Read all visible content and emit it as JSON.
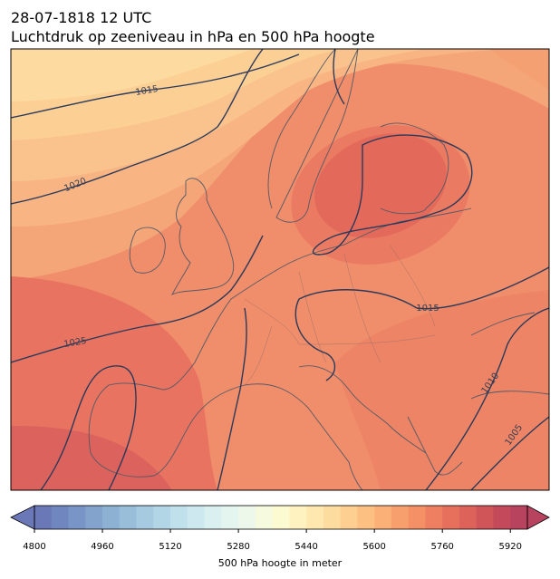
{
  "header": {
    "date": "28-07-1818 12 UTC",
    "title": "Luchtdruk op zeeniveau in hPa en 500 hPa hoogte"
  },
  "map": {
    "contour_labels": [
      "1015",
      "1020",
      "1025",
      "1015",
      "1010",
      "1005"
    ]
  },
  "colorbar": {
    "label": "500 hPa hoogte in meter",
    "clim": [
      4800,
      5960
    ],
    "ticks": [
      4800,
      4960,
      5120,
      5280,
      5440,
      5600,
      5760,
      5920
    ],
    "colors": [
      "#6b78b8",
      "#7086bf",
      "#7994c6",
      "#83a3cc",
      "#8db1d3",
      "#99bed9",
      "#a6cbe0",
      "#b3d6e6",
      "#c0e0ec",
      "#cde9ef",
      "#d9eff0",
      "#e4f4ef",
      "#eef8ea",
      "#f6fbdf",
      "#fcfad0",
      "#fef3c0",
      "#fee8b0",
      "#fddca0",
      "#fdcf91",
      "#fcc083",
      "#fbb077",
      "#f8a06d",
      "#f48f66",
      "#ee7f60",
      "#e6705c",
      "#dc625a",
      "#d05559",
      "#c3495b",
      "#b8435e"
    ]
  }
}
